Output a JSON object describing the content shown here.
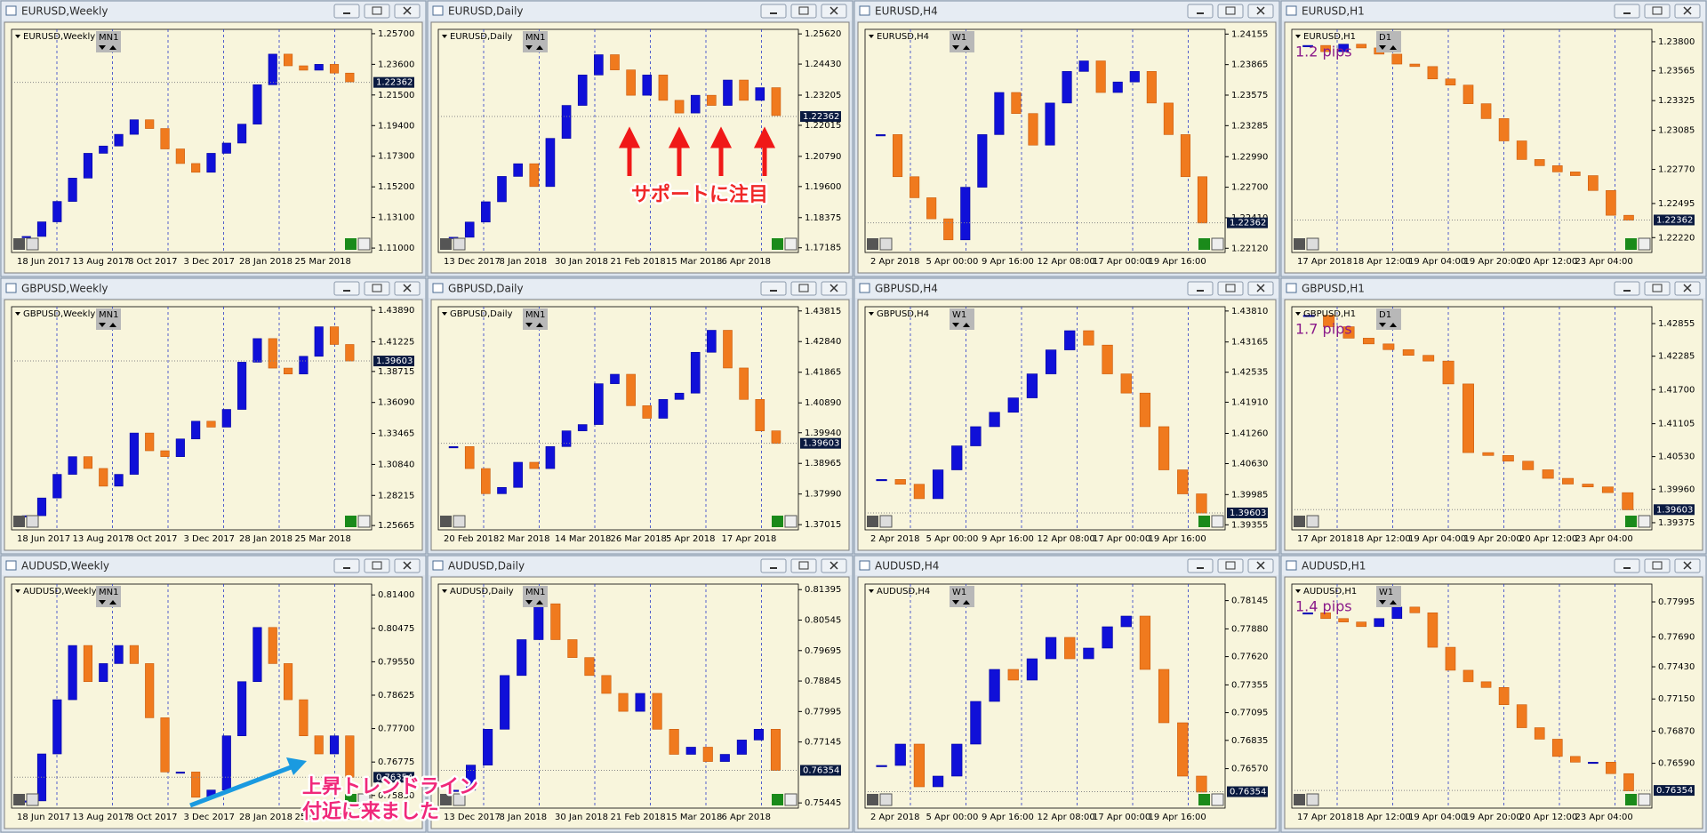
{
  "windows": [
    {
      "title": "EURUSD,Weekly",
      "tf": "MN1",
      "ylim": [
        1.107,
        1.26
      ],
      "ticks": [
        {
          "value": 1.257,
          "label": "1.25700"
        },
        {
          "value": 1.236,
          "label": "1.23600"
        },
        {
          "value": 1.215,
          "label": "1.21500"
        },
        {
          "value": 1.194,
          "label": "1.19400"
        },
        {
          "value": 1.173,
          "label": "1.17300"
        },
        {
          "value": 1.152,
          "label": "1.15200"
        },
        {
          "value": 1.131,
          "label": "1.13100"
        },
        {
          "value": 1.11,
          "label": "1.11000"
        }
      ],
      "price": 1.22362,
      "dates": [
        "18 Jun 2017",
        "13 Aug 2017",
        "8 Oct 2017",
        "3 Dec 2017",
        "28 Jan 2018",
        "25 Mar 2018"
      ],
      "closes": [
        1.118,
        1.128,
        1.142,
        1.158,
        1.175,
        1.18,
        1.188,
        1.198,
        1.192,
        1.178,
        1.168,
        1.162,
        1.175,
        1.182,
        1.195,
        1.222,
        1.243,
        1.235,
        1.232,
        1.236,
        1.23,
        1.224
      ]
    },
    {
      "title": "EURUSD,Daily",
      "tf": "MN1",
      "ylim": [
        1.17,
        1.258
      ],
      "ticks": [
        {
          "value": 1.2562,
          "label": "1.25620"
        },
        {
          "value": 1.2443,
          "label": "1.24430"
        },
        1.23205,
        1.22015,
        {
          "value": 1.2079,
          "label": "1.20790"
        },
        {
          "value": 1.196,
          "label": "1.19600"
        },
        1.18375,
        1.17185
      ],
      "price": 1.22362,
      "dates": [
        "13 Dec 2017",
        "8 Jan 2018",
        "30 Jan 2018",
        "21 Feb 2018",
        "15 Mar 2018",
        "6 Apr 2018"
      ],
      "closes": [
        1.176,
        1.182,
        1.19,
        1.2,
        1.205,
        1.196,
        1.215,
        1.228,
        1.24,
        1.248,
        1.242,
        1.232,
        1.24,
        1.23,
        1.225,
        1.232,
        1.228,
        1.238,
        1.23,
        1.235,
        1.224
      ]
    },
    {
      "title": "EURUSD,H4",
      "tf": "W1",
      "ylim": [
        1.2208,
        1.242
      ],
      "ticks": [
        1.24155,
        1.23865,
        1.23575,
        1.23285,
        {
          "value": 1.2299,
          "label": "1.22990"
        },
        {
          "value": 1.227,
          "label": "1.22700"
        },
        {
          "value": 1.2241,
          "label": "1.22410"
        },
        {
          "value": 1.2212,
          "label": "1.22120"
        }
      ],
      "price": 1.22362,
      "dates": [
        "2 Apr 2018",
        "5 Apr 00:00",
        "9 Apr 16:00",
        "12 Apr 08:00",
        "17 Apr 00:00",
        "19 Apr 16:00"
      ],
      "closes": [
        1.232,
        1.228,
        1.226,
        1.224,
        1.222,
        1.227,
        1.232,
        1.236,
        1.234,
        1.231,
        1.235,
        1.238,
        1.239,
        1.236,
        1.237,
        1.238,
        1.235,
        1.232,
        1.228,
        1.2236
      ]
    },
    {
      "title": "EURUSD,H1",
      "tf": "D1",
      "pips": "1.2 pips",
      "ylim": [
        1.221,
        1.239
      ],
      "ticks": [
        {
          "value": 1.238,
          "label": "1.23800"
        },
        1.23565,
        1.23325,
        1.23085,
        {
          "value": 1.2277,
          "label": "1.22770"
        },
        1.22495,
        {
          "value": 1.2222,
          "label": "1.22220"
        }
      ],
      "price": 1.22362,
      "dates": [
        "17 Apr 2018",
        "18 Apr 12:00",
        "19 Apr 04:00",
        "19 Apr 20:00",
        "20 Apr 12:00",
        "23 Apr 04:00"
      ],
      "closes": [
        1.2377,
        1.2372,
        1.2378,
        1.2375,
        1.237,
        1.2362,
        1.236,
        1.235,
        1.2345,
        1.233,
        1.2318,
        1.23,
        1.2285,
        1.228,
        1.2275,
        1.2272,
        1.226,
        1.224,
        1.2236
      ]
    },
    {
      "title": "GBPUSD,Weekly",
      "tf": "MN1",
      "ylim": [
        1.253,
        1.442
      ],
      "ticks": [
        {
          "value": 1.4389,
          "label": "1.43890"
        },
        1.41225,
        1.38715,
        {
          "value": 1.3609,
          "label": "1.36090"
        },
        1.33465,
        {
          "value": 1.3084,
          "label": "1.30840"
        },
        1.28215,
        1.25665
      ],
      "price": 1.39603,
      "dates": [
        "18 Jun 2017",
        "13 Aug 2017",
        "8 Oct 2017",
        "3 Dec 2017",
        "28 Jan 2018",
        "25 Mar 2018"
      ],
      "closes": [
        1.265,
        1.28,
        1.3,
        1.315,
        1.305,
        1.29,
        1.3,
        1.335,
        1.32,
        1.315,
        1.33,
        1.345,
        1.34,
        1.355,
        1.395,
        1.415,
        1.39,
        1.385,
        1.4,
        1.425,
        1.41,
        1.396
      ]
    },
    {
      "title": "GBPUSD,Daily",
      "tf": "MN1",
      "ylim": [
        1.3685,
        1.4395
      ],
      "ticks": [
        1.43815,
        {
          "value": 1.4284,
          "label": "1.42840"
        },
        1.41865,
        {
          "value": 1.4089,
          "label": "1.40890"
        },
        {
          "value": 1.3994,
          "label": "1.39940"
        },
        1.38965,
        {
          "value": 1.3799,
          "label": "1.37990"
        },
        1.37015
      ],
      "price": 1.39603,
      "dates": [
        "20 Feb 2018",
        "2 Mar 2018",
        "14 Mar 2018",
        "26 Mar 2018",
        "5 Apr 2018",
        "17 Apr 2018"
      ],
      "closes": [
        1.395,
        1.388,
        1.38,
        1.382,
        1.39,
        1.388,
        1.395,
        1.4,
        1.402,
        1.415,
        1.418,
        1.408,
        1.404,
        1.41,
        1.412,
        1.425,
        1.432,
        1.42,
        1.41,
        1.4,
        1.396
      ]
    },
    {
      "title": "GBPUSD,H4",
      "tf": "W1",
      "ylim": [
        1.3925,
        1.439
      ],
      "ticks": [
        {
          "value": 1.4381,
          "label": "1.43810"
        },
        1.43165,
        1.42535,
        {
          "value": 1.4191,
          "label": "1.41910"
        },
        {
          "value": 1.4126,
          "label": "1.41260"
        },
        {
          "value": 1.4063,
          "label": "1.40630"
        },
        1.39985,
        1.39355
      ],
      "price": 1.39603,
      "dates": [
        "2 Apr 2018",
        "5 Apr 00:00",
        "9 Apr 16:00",
        "12 Apr 08:00",
        "17 Apr 00:00",
        "19 Apr 16:00"
      ],
      "closes": [
        1.403,
        1.402,
        1.399,
        1.405,
        1.41,
        1.414,
        1.417,
        1.42,
        1.425,
        1.43,
        1.434,
        1.431,
        1.425,
        1.421,
        1.414,
        1.405,
        1.4,
        1.396
      ]
    },
    {
      "title": "GBPUSD,H1",
      "tf": "D1",
      "pips": "1.7 pips",
      "ylim": [
        1.3925,
        1.4315
      ],
      "ticks": [
        1.42855,
        1.42285,
        {
          "value": 1.417,
          "label": "1.41700"
        },
        1.41105,
        {
          "value": 1.4053,
          "label": "1.40530"
        },
        {
          "value": 1.3996,
          "label": "1.39960"
        },
        1.39375
      ],
      "price": 1.39603,
      "dates": [
        "17 Apr 2018",
        "18 Apr 12:00",
        "19 Apr 04:00",
        "19 Apr 20:00",
        "20 Apr 12:00",
        "23 Apr 04:00"
      ],
      "closes": [
        1.43,
        1.428,
        1.426,
        1.425,
        1.424,
        1.423,
        1.422,
        1.418,
        1.406,
        1.4055,
        1.4045,
        1.403,
        1.4015,
        1.4005,
        1.4,
        1.399,
        1.396
      ]
    },
    {
      "title": "AUDUSD,Weekly",
      "tf": "MN1",
      "ylim": [
        0.755,
        0.817
      ],
      "ticks": [
        {
          "value": 0.814,
          "label": "0.81400"
        },
        0.80475,
        {
          "value": 0.7955,
          "label": "0.79550"
        },
        0.78625,
        {
          "value": 0.777,
          "label": "0.77700"
        },
        0.76775,
        {
          "value": 0.7585,
          "label": "0.75850"
        }
      ],
      "price": 0.76354,
      "dates": [
        "18 Jun 2017",
        "13 Aug 2017",
        "8 Oct 2017",
        "3 Dec 2017",
        "28 Jan 2018",
        "25 Mar 2018"
      ],
      "closes": [
        0.757,
        0.77,
        0.785,
        0.8,
        0.79,
        0.795,
        0.8,
        0.795,
        0.78,
        0.765,
        0.765,
        0.758,
        0.76,
        0.775,
        0.79,
        0.805,
        0.795,
        0.785,
        0.775,
        0.77,
        0.775,
        0.7635
      ]
    },
    {
      "title": "AUDUSD,Daily",
      "tf": "MN1",
      "ylim": [
        0.753,
        0.8155
      ],
      "ticks": [
        0.81395,
        0.80545,
        0.79695,
        0.78845,
        0.77995,
        0.77145,
        0.75445
      ],
      "price": 0.76354,
      "dates": [
        "13 Dec 2017",
        "8 Jan 2018",
        "30 Jan 2018",
        "21 Feb 2018",
        "15 Mar 2018",
        "6 Apr 2018"
      ],
      "closes": [
        0.758,
        0.765,
        0.775,
        0.79,
        0.8,
        0.81,
        0.8,
        0.795,
        0.79,
        0.785,
        0.78,
        0.785,
        0.775,
        0.768,
        0.77,
        0.766,
        0.768,
        0.772,
        0.775,
        0.7635
      ]
    },
    {
      "title": "AUDUSD,H4",
      "tf": "W1",
      "ylim": [
        0.762,
        0.783
      ],
      "ticks": [
        0.78145,
        {
          "value": 0.7788,
          "label": "0.77880"
        },
        {
          "value": 0.7762,
          "label": "0.77620"
        },
        0.77355,
        0.77095,
        0.76835,
        {
          "value": 0.7657,
          "label": "0.76570"
        }
      ],
      "price": 0.76354,
      "dates": [
        "2 Apr 2018",
        "5 Apr 00:00",
        "9 Apr 16:00",
        "12 Apr 08:00",
        "17 Apr 00:00",
        "19 Apr 16:00"
      ],
      "closes": [
        0.766,
        0.768,
        0.764,
        0.765,
        0.768,
        0.772,
        0.775,
        0.774,
        0.776,
        0.778,
        0.776,
        0.777,
        0.779,
        0.78,
        0.775,
        0.77,
        0.765,
        0.7635
      ]
    },
    {
      "title": "AUDUSD,H1",
      "tf": "W1",
      "pips": "1.4 pips",
      "ylim": [
        0.762,
        0.7815
      ],
      "ticks": [
        0.77995,
        {
          "value": 0.7769,
          "label": "0.77690"
        },
        {
          "value": 0.7743,
          "label": "0.77430"
        },
        {
          "value": 0.7715,
          "label": "0.77150"
        },
        {
          "value": 0.7687,
          "label": "0.76870"
        },
        {
          "value": 0.7659,
          "label": "0.76590"
        }
      ],
      "price": 0.76354,
      "dates": [
        "17 Apr 2018",
        "18 Apr 12:00",
        "19 Apr 04:00",
        "19 Apr 20:00",
        "20 Apr 12:00",
        "23 Apr 04:00"
      ],
      "closes": [
        0.779,
        0.7785,
        0.7782,
        0.7778,
        0.7785,
        0.7795,
        0.779,
        0.776,
        0.774,
        0.773,
        0.7725,
        0.771,
        0.769,
        0.768,
        0.7665,
        0.766,
        0.766,
        0.765,
        0.7635
      ]
    }
  ],
  "annotations": {
    "support": "サポートに注目",
    "trend": [
      "上昇トレンドライン",
      "付近に来ました"
    ]
  }
}
